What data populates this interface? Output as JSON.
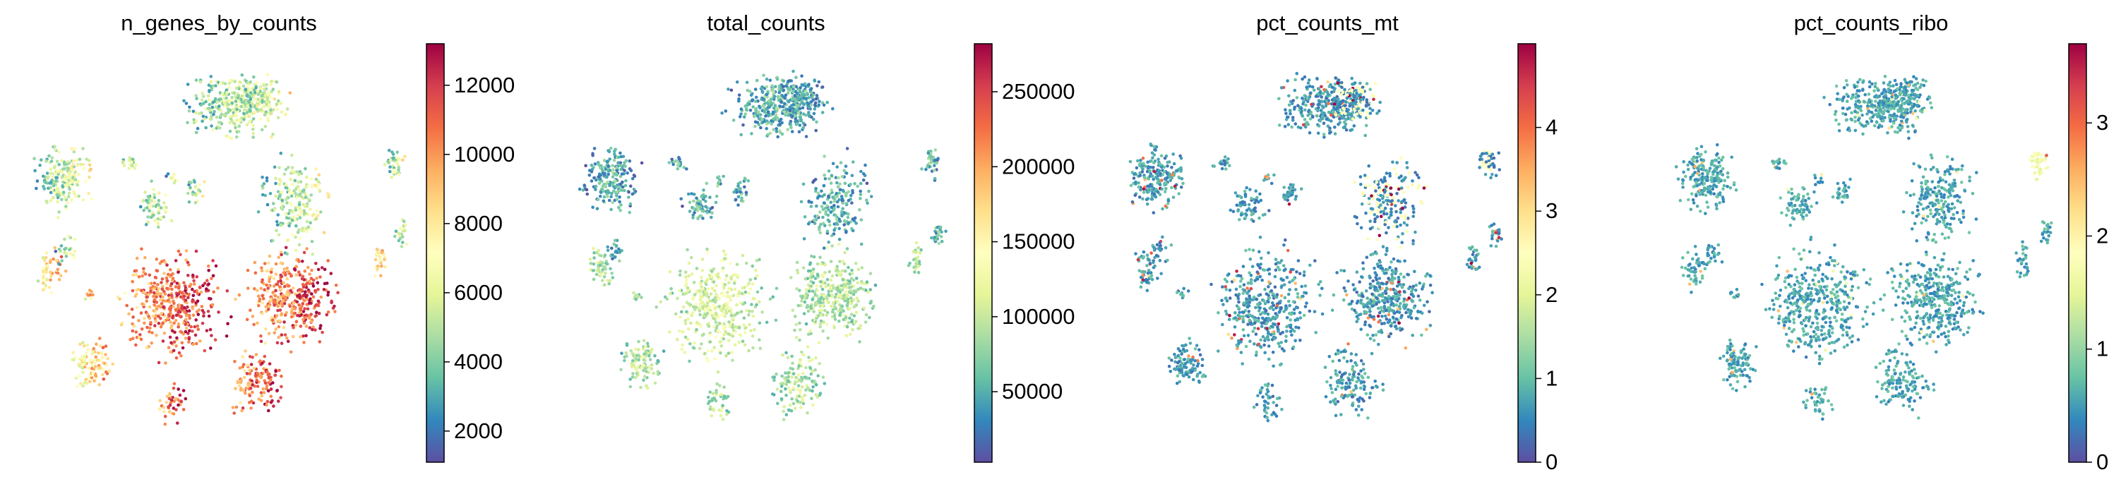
{
  "figure": {
    "layout": "4 panels in one row, each an embedding scatter with a vertical colorbar on the right",
    "axes_visible": false,
    "grid": false,
    "colormap": "Spectral_r",
    "colormap_stops": [
      "#5e4fa2",
      "#3288bd",
      "#66c2a5",
      "#abdda4",
      "#e6f598",
      "#ffffbf",
      "#fee08b",
      "#fdae61",
      "#f46d43",
      "#d53e4f",
      "#9e0142"
    ]
  },
  "chart_data": [
    {
      "type": "scatter",
      "title": "n_genes_by_counts",
      "xlabel": "",
      "ylabel": "",
      "color_range": [
        1100,
        13200
      ],
      "colorbar_ticks": [
        "2000",
        "4000",
        "6000",
        "8000",
        "10000",
        "12000"
      ],
      "tick_values": [
        2000,
        4000,
        6000,
        8000,
        10000,
        12000
      ]
    },
    {
      "type": "scatter",
      "title": "total_counts",
      "xlabel": "",
      "ylabel": "",
      "color_range": [
        3000,
        282000
      ],
      "colorbar_ticks": [
        "50000",
        "100000",
        "150000",
        "200000",
        "250000"
      ],
      "tick_values": [
        50000,
        100000,
        150000,
        200000,
        250000
      ]
    },
    {
      "type": "scatter",
      "title": "pct_counts_mt",
      "xlabel": "",
      "ylabel": "",
      "color_range": [
        0,
        5.0
      ],
      "colorbar_ticks": [
        "0",
        "1",
        "2",
        "3",
        "4"
      ],
      "tick_values": [
        0,
        1,
        2,
        3,
        4
      ]
    },
    {
      "type": "scatter",
      "title": "pct_counts_ribo",
      "xlabel": "",
      "ylabel": "",
      "color_range": [
        0,
        3.7
      ],
      "colorbar_ticks": [
        "0",
        "1",
        "2",
        "3"
      ],
      "tick_values": [
        0,
        1,
        2,
        3
      ]
    }
  ]
}
